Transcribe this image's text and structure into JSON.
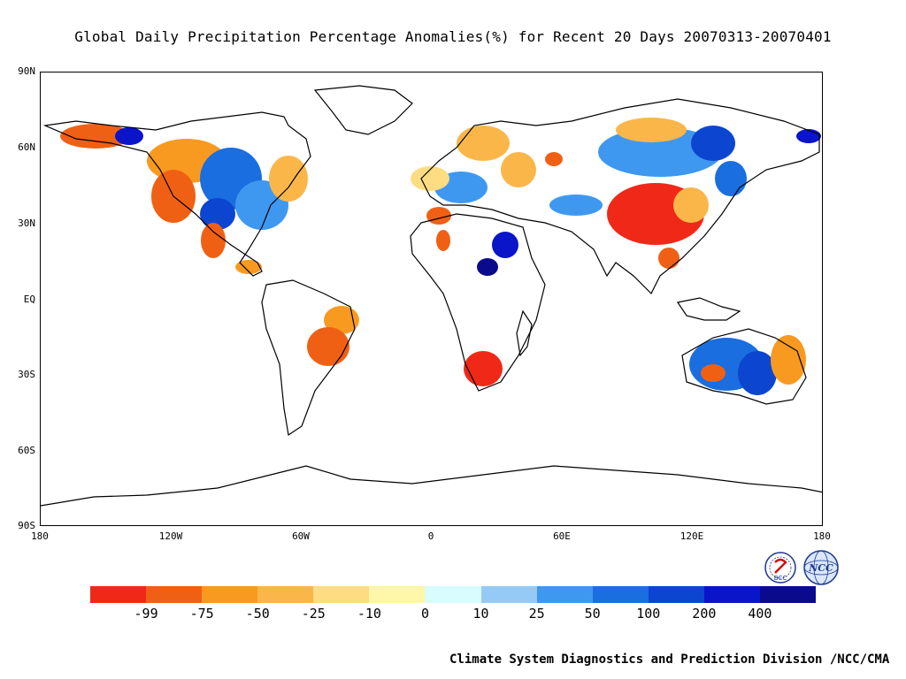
{
  "title": "Global Daily Precipitation Percentage Anomalies(%) for Recent 20 Days   20070313-20070401",
  "lat_labels": [
    "90N",
    "60N",
    "30N",
    "EQ",
    "30S",
    "60S",
    "90S"
  ],
  "lon_labels": [
    "180",
    "120W",
    "60W",
    "0",
    "60E",
    "120E",
    "180"
  ],
  "colorbar": {
    "colors": [
      "#f02818",
      "#f06014",
      "#f89a20",
      "#fbb64a",
      "#fddc82",
      "#fef6a8",
      "#d8fcff",
      "#96caf6",
      "#3e98f0",
      "#1a6ee0",
      "#0c46d0",
      "#0a14c8",
      "#0a0a8c"
    ],
    "labels": [
      "-99",
      "-75",
      "-50",
      "-25",
      "-10",
      "0",
      "10",
      "25",
      "50",
      "100",
      "200",
      "400"
    ]
  },
  "logos": {
    "left_text": "BCC",
    "right_text": "NCC"
  },
  "credit": "Climate System Diagnostics and Prediction Division /NCC/CMA",
  "anomaly_patches": [
    {
      "region": "Alaska",
      "color": "#f06014"
    },
    {
      "region": "NW America",
      "color": "#f89a20"
    },
    {
      "region": "Central US",
      "color": "#1a6ee0"
    },
    {
      "region": "East US",
      "color": "#3e98f0"
    },
    {
      "region": "Mexico",
      "color": "#f06014"
    },
    {
      "region": "Brazil",
      "color": "#f89a20"
    },
    {
      "region": "Europe",
      "color": "#fbb64a"
    },
    {
      "region": "North Africa",
      "color": "#0a14c8"
    },
    {
      "region": "Southern Africa",
      "color": "#f02818"
    },
    {
      "region": "Siberia",
      "color": "#3e98f0"
    },
    {
      "region": "China",
      "color": "#f02818"
    },
    {
      "region": "Australia",
      "color": "#1a6ee0"
    }
  ]
}
